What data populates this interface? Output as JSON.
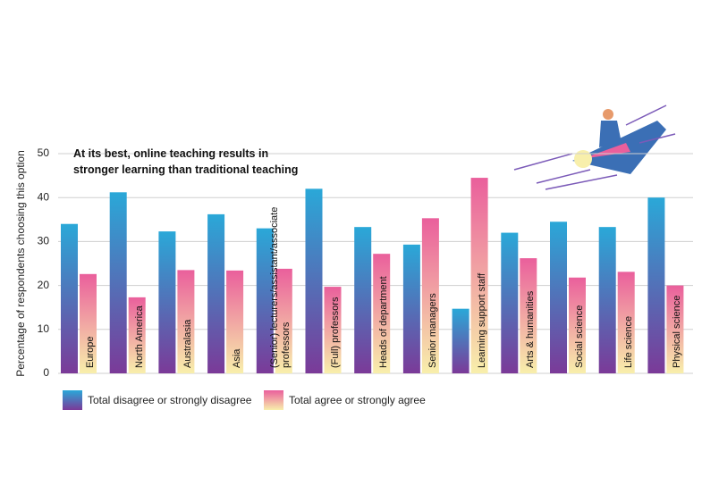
{
  "chart_data": {
    "type": "bar",
    "title": "At its best, online teaching results in stronger learning than traditional teaching",
    "y_label": "Percentage of respondents choosing this option",
    "categories": [
      "Europe",
      "North America",
      "Australasia",
      "Asia",
      "(Senior) lecturers/assistant/associate professors",
      "(Full) professors",
      "Heads of department",
      "Senior managers",
      "Learning support staff",
      "Arts & humanities",
      "Social science",
      "Life science",
      "Physical science"
    ],
    "series": [
      {
        "name": "Total disagree or strongly disagree",
        "color": "#2aa8d8",
        "values": [
          34,
          41.2,
          32.3,
          36.2,
          33,
          42,
          33.3,
          29.3,
          14.7,
          32,
          34.5,
          33.3,
          40
        ]
      },
      {
        "name": "Total agree or strongly agree",
        "color": "#ea5f9c",
        "values": [
          22.6,
          17.3,
          23.5,
          23.4,
          23.8,
          19.7,
          27.2,
          35.3,
          44.5,
          26.2,
          21.8,
          23.1,
          20
        ]
      }
    ],
    "ylim": [
      0,
      50
    ],
    "yticks": [
      0,
      10,
      20,
      30,
      40,
      50
    ],
    "grid": true
  }
}
